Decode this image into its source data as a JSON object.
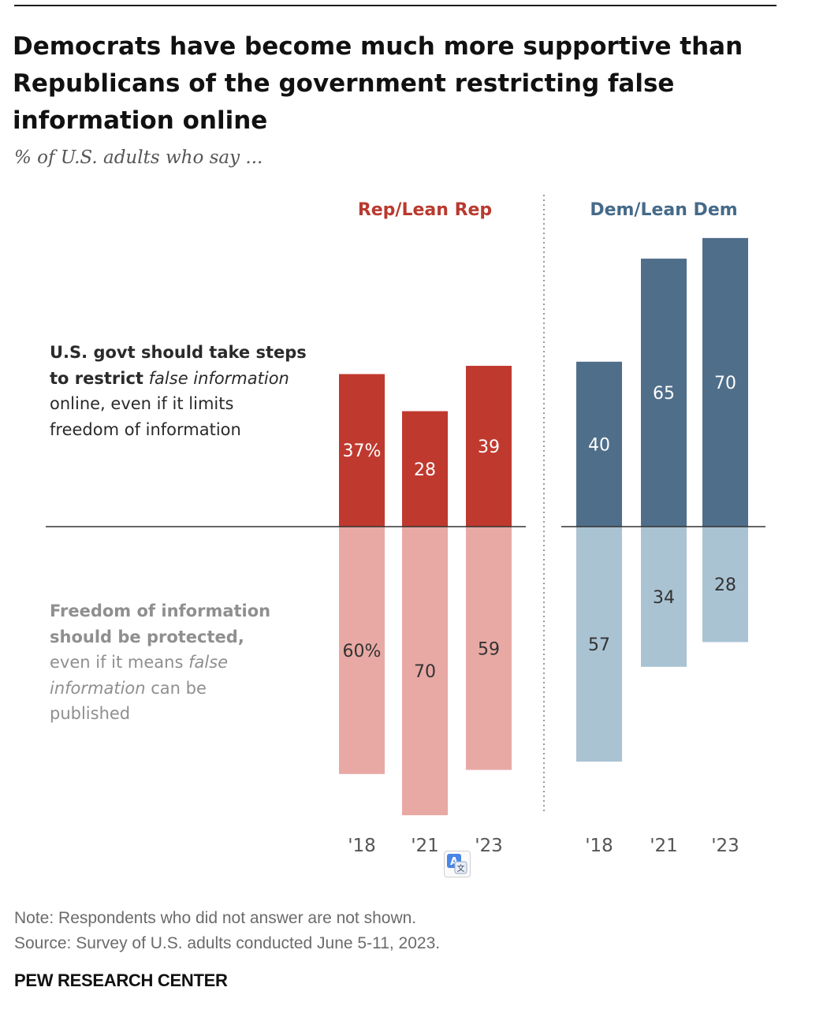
{
  "title": "Democrats have become much more supportive than\nRepublicans of the government restricting false\ninformation online",
  "subtitle": "% of U.S. adults who say ...",
  "row_labels": {
    "restrict": {
      "bold1": "U.S. govt should take steps",
      "bold2": "to restrict",
      "italic": "false information",
      "rest": "online, even if it limits",
      "rest2": "freedom of information"
    },
    "protect": {
      "bold1": "Freedom of information",
      "bold2": "should be protected,",
      "rest1": "even if it means",
      "italic1": "false",
      "italic2": "information",
      "rest2": "can be",
      "rest3": "published"
    }
  },
  "colors": {
    "rep_dark": "#c0392f",
    "rep_light": "#e8a9a4",
    "dem_dark": "#4f6e8a",
    "dem_light": "#a9c3d3",
    "rep_label": "#b83a2f",
    "dem_label": "#456a89"
  },
  "chart_data": {
    "type": "bar",
    "categories": [
      "'18",
      "'21",
      "'23"
    ],
    "groups": [
      {
        "name": "Rep/Lean Rep",
        "series": [
          {
            "name": "U.S. govt should take steps to restrict false information online, even if it limits freedom of information",
            "values": [
              37,
              28,
              39
            ],
            "labels": [
              "37%",
              "28",
              "39"
            ]
          },
          {
            "name": "Freedom of information should be protected, even if it means false information can be published",
            "values": [
              60,
              70,
              59
            ],
            "labels": [
              "60%",
              "70",
              "59"
            ]
          }
        ]
      },
      {
        "name": "Dem/Lean Dem",
        "series": [
          {
            "name": "U.S. govt should take steps to restrict false information online, even if it limits freedom of information",
            "values": [
              40,
              65,
              70
            ],
            "labels": [
              "40",
              "65",
              "70"
            ]
          },
          {
            "name": "Freedom of information should be protected, even if it means false information can be published",
            "values": [
              57,
              34,
              28
            ],
            "labels": [
              "57",
              "34",
              "28"
            ]
          }
        ]
      }
    ]
  },
  "footer": {
    "note": "Note: Respondents who did not answer are not shown.",
    "source": "Source: Survey of U.S. adults conducted June 5-11, 2023.",
    "brand": "PEW RESEARCH CENTER"
  },
  "icons": {
    "translate": "translate-icon"
  }
}
